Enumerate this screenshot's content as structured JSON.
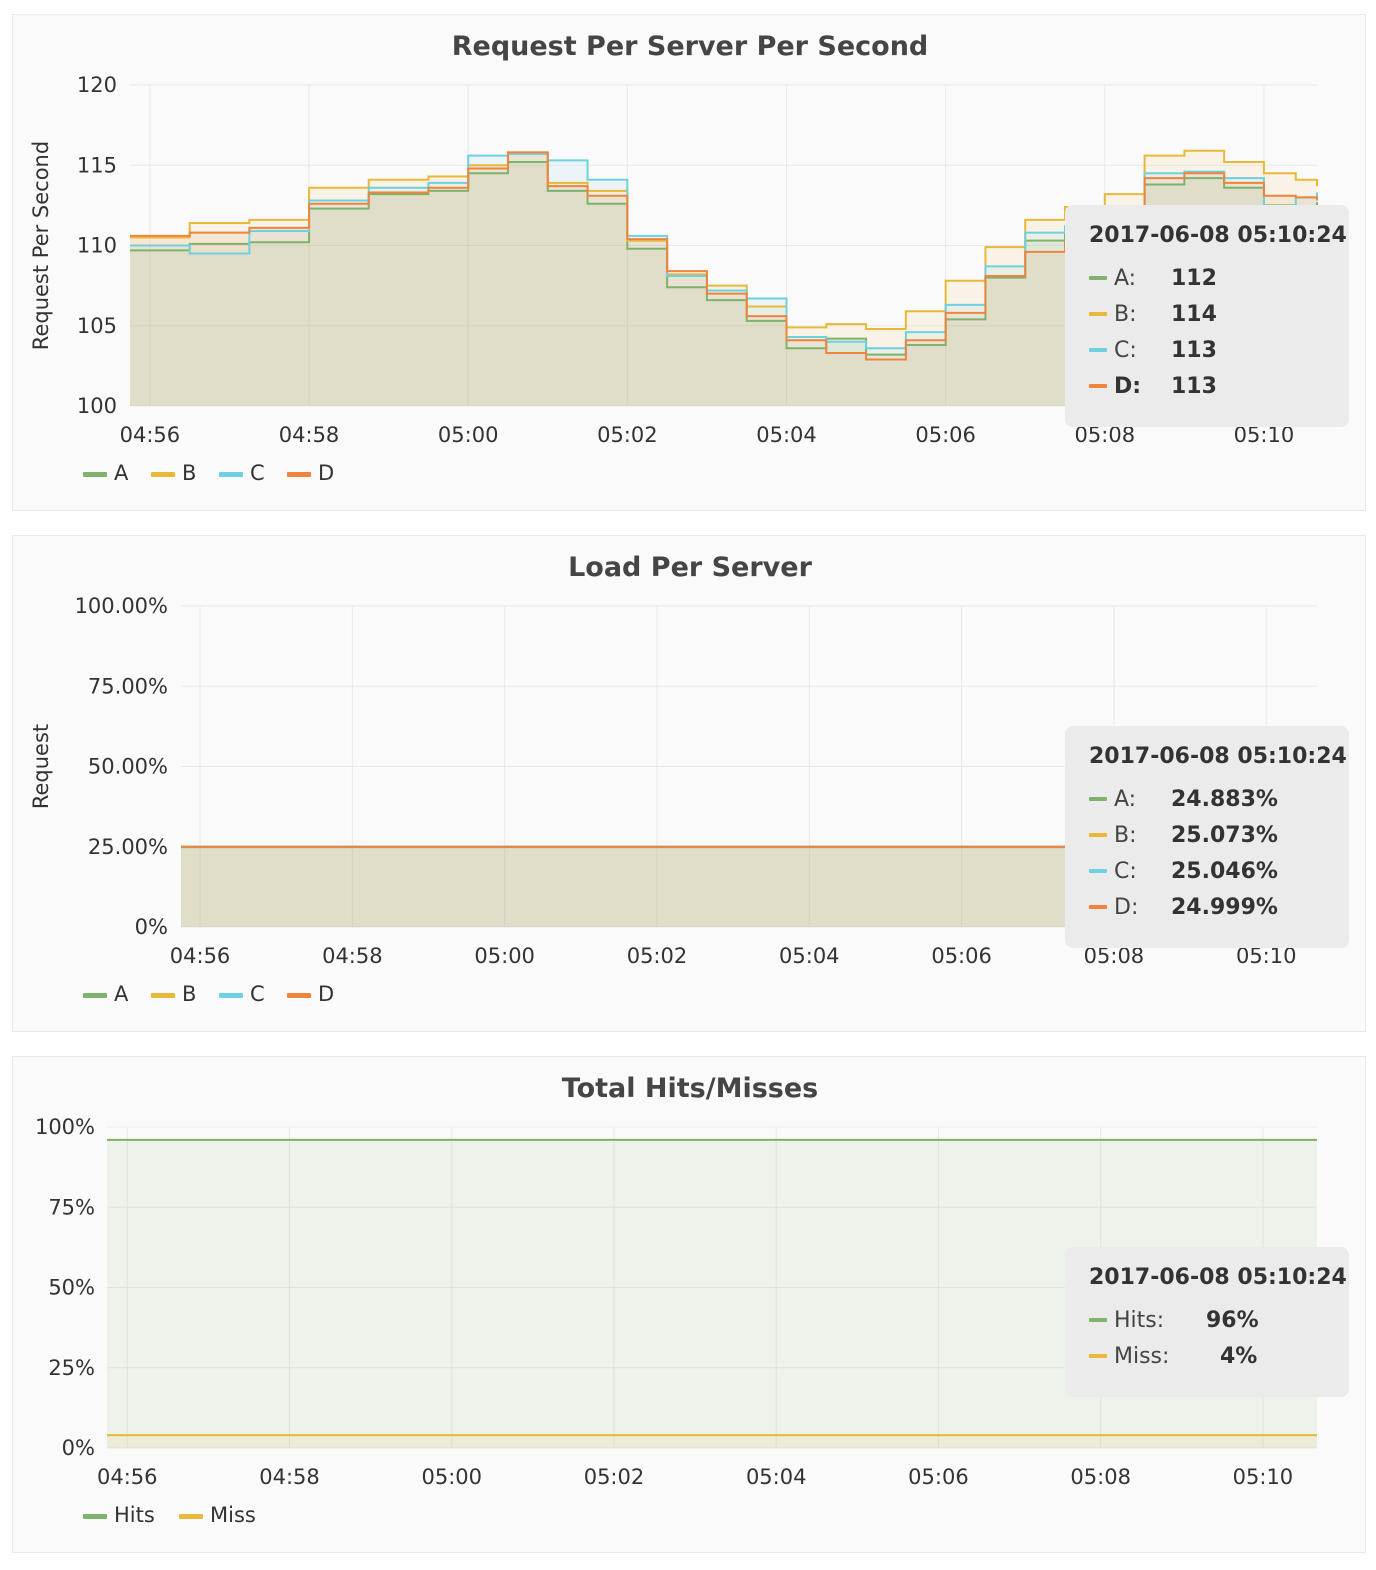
{
  "colors": {
    "A": "#7eb26d",
    "B": "#eab839",
    "C": "#6ed0e0",
    "D": "#ef843c"
  },
  "chart_data": [
    {
      "type": "line",
      "title": "Request Per Server Per Second",
      "ylabel": "Request Per Second",
      "xlabel": "",
      "ylim": [
        100,
        120
      ],
      "yticks": [
        "100",
        "105",
        "110",
        "115",
        "120"
      ],
      "x_start": "04:55:45",
      "x_end": "05:10:40",
      "xticks": [
        "04:56",
        "04:58",
        "05:00",
        "05:02",
        "05:04",
        "05:06",
        "05:08",
        "05:10"
      ],
      "grid": true,
      "stacked": false,
      "legend": "bottom-left",
      "x": [
        "04:55:45",
        "04:56:30",
        "04:57:15",
        "04:58:00",
        "04:58:45",
        "04:59:30",
        "05:00:00",
        "05:00:30",
        "05:01:00",
        "05:01:30",
        "05:02:00",
        "05:02:30",
        "05:03:00",
        "05:03:30",
        "05:04:00",
        "05:04:30",
        "05:05:00",
        "05:05:30",
        "05:06:00",
        "05:06:30",
        "05:07:00",
        "05:07:30",
        "05:08:00",
        "05:08:30",
        "05:09:00",
        "05:09:30",
        "05:10:00",
        "05:10:24",
        "05:10:40"
      ],
      "series": [
        {
          "name": "A",
          "values": [
            109.7,
            110.1,
            110.2,
            112.3,
            113.2,
            113.4,
            114.5,
            115.2,
            113.4,
            112.6,
            109.8,
            107.4,
            106.6,
            105.3,
            103.6,
            104.2,
            103.2,
            103.8,
            105.4,
            108.0,
            110.3,
            110.9,
            111.1,
            113.8,
            114.2,
            113.6,
            112.5,
            112.0,
            112.7
          ]
        },
        {
          "name": "B",
          "values": [
            110.5,
            111.4,
            111.6,
            113.6,
            114.1,
            114.3,
            115.0,
            115.8,
            113.9,
            113.4,
            110.3,
            108.2,
            107.5,
            106.2,
            104.9,
            105.1,
            104.8,
            105.9,
            107.8,
            109.9,
            111.6,
            112.4,
            113.2,
            115.6,
            115.9,
            115.2,
            114.5,
            114.1,
            113.7
          ]
        },
        {
          "name": "C",
          "values": [
            110.0,
            109.5,
            110.9,
            112.8,
            113.6,
            113.9,
            115.6,
            115.7,
            115.3,
            114.1,
            110.6,
            108.1,
            107.2,
            106.7,
            104.3,
            104.0,
            103.6,
            104.6,
            106.3,
            108.7,
            110.8,
            111.2,
            112.0,
            114.5,
            114.6,
            114.2,
            112.4,
            113.0,
            113.3
          ]
        },
        {
          "name": "D",
          "values": [
            110.6,
            110.8,
            111.1,
            112.6,
            113.3,
            113.6,
            114.8,
            115.8,
            113.7,
            113.1,
            110.4,
            108.4,
            107.0,
            105.6,
            104.1,
            103.3,
            102.9,
            104.1,
            105.8,
            108.1,
            109.6,
            110.2,
            111.7,
            114.2,
            114.5,
            113.9,
            113.1,
            113.0,
            112.8
          ]
        }
      ]
    },
    {
      "type": "line",
      "title": "Load Per Server",
      "ylabel": "Request",
      "xlabel": "",
      "ylim": [
        0,
        100
      ],
      "yticks": [
        "0%",
        "25.00%",
        "50.00%",
        "75.00%",
        "100.00%"
      ],
      "x_start": "04:55:45",
      "x_end": "05:10:40",
      "xticks": [
        "04:56",
        "04:58",
        "05:00",
        "05:02",
        "05:04",
        "05:06",
        "05:08",
        "05:10"
      ],
      "grid": true,
      "stacked": false,
      "legend": "bottom-left",
      "x": [
        "04:55:45",
        "05:10:40"
      ],
      "series": [
        {
          "name": "A",
          "values": [
            24.883,
            24.883
          ]
        },
        {
          "name": "B",
          "values": [
            25.073,
            25.073
          ]
        },
        {
          "name": "C",
          "values": [
            25.046,
            25.046
          ]
        },
        {
          "name": "D",
          "values": [
            24.999,
            24.999
          ]
        }
      ]
    },
    {
      "type": "area",
      "title": "Total Hits/Misses",
      "ylabel": "",
      "xlabel": "",
      "ylim": [
        0,
        100
      ],
      "yticks": [
        "0%",
        "25%",
        "50%",
        "75%",
        "100%"
      ],
      "x_start": "04:55:45",
      "x_end": "05:10:40",
      "xticks": [
        "04:56",
        "04:58",
        "05:00",
        "05:02",
        "05:04",
        "05:06",
        "05:08",
        "05:10"
      ],
      "grid": true,
      "legend": "bottom-left",
      "x": [
        "04:55:45",
        "05:10:40"
      ],
      "series": [
        {
          "name": "Hits",
          "values": [
            96,
            96
          ]
        },
        {
          "name": "Miss",
          "values": [
            4,
            4
          ]
        }
      ]
    }
  ],
  "tooltips": [
    {
      "time": "2017-06-08 05:10:24",
      "rows": [
        {
          "label": "A:",
          "value": "112",
          "color": "#7eb26d",
          "highlight": false
        },
        {
          "label": "B:",
          "value": "114",
          "color": "#eab839",
          "highlight": false
        },
        {
          "label": "C:",
          "value": "113",
          "color": "#6ed0e0",
          "highlight": false
        },
        {
          "label": "D:",
          "value": "113",
          "color": "#ef843c",
          "highlight": true
        }
      ]
    },
    {
      "time": "2017-06-08 05:10:24",
      "rows": [
        {
          "label": "A:",
          "value": "24.883%",
          "color": "#7eb26d",
          "highlight": false
        },
        {
          "label": "B:",
          "value": "25.073%",
          "color": "#eab839",
          "highlight": false
        },
        {
          "label": "C:",
          "value": "25.046%",
          "color": "#6ed0e0",
          "highlight": false
        },
        {
          "label": "D:",
          "value": "24.999%",
          "color": "#ef843c",
          "highlight": false
        }
      ]
    },
    {
      "time": "2017-06-08 05:10:24",
      "rows": [
        {
          "label": "Hits:",
          "value": "96%",
          "color": "#7eb26d",
          "highlight": false
        },
        {
          "label": "Miss:",
          "value": "4%",
          "color": "#eab839",
          "highlight": false
        }
      ]
    }
  ]
}
